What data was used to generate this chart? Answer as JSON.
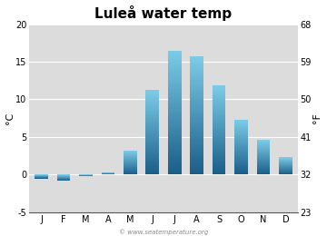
{
  "title": "Luleå water temp",
  "months": [
    "J",
    "F",
    "M",
    "A",
    "M",
    "J",
    "J",
    "A",
    "S",
    "O",
    "N",
    "D"
  ],
  "values_c": [
    -0.5,
    -0.8,
    -0.2,
    0.3,
    3.2,
    11.2,
    16.5,
    15.7,
    11.9,
    7.3,
    4.6,
    2.3
  ],
  "ylim_c": [
    -5,
    20
  ],
  "yticks_c": [
    -5,
    0,
    5,
    10,
    15,
    20
  ],
  "ylim_f": [
    23,
    68
  ],
  "yticks_f": [
    23,
    32,
    41,
    50,
    59,
    68
  ],
  "ylabel_left": "°C",
  "ylabel_right": "°F",
  "bar_color_top": "#7dcde8",
  "bar_color_bottom": "#1b5e8a",
  "fig_bg_color": "#ffffff",
  "plot_bg_color": "#dcdcdc",
  "watermark": "© www.seatemperature.org",
  "title_fontsize": 11,
  "axis_fontsize": 7,
  "label_fontsize": 8
}
